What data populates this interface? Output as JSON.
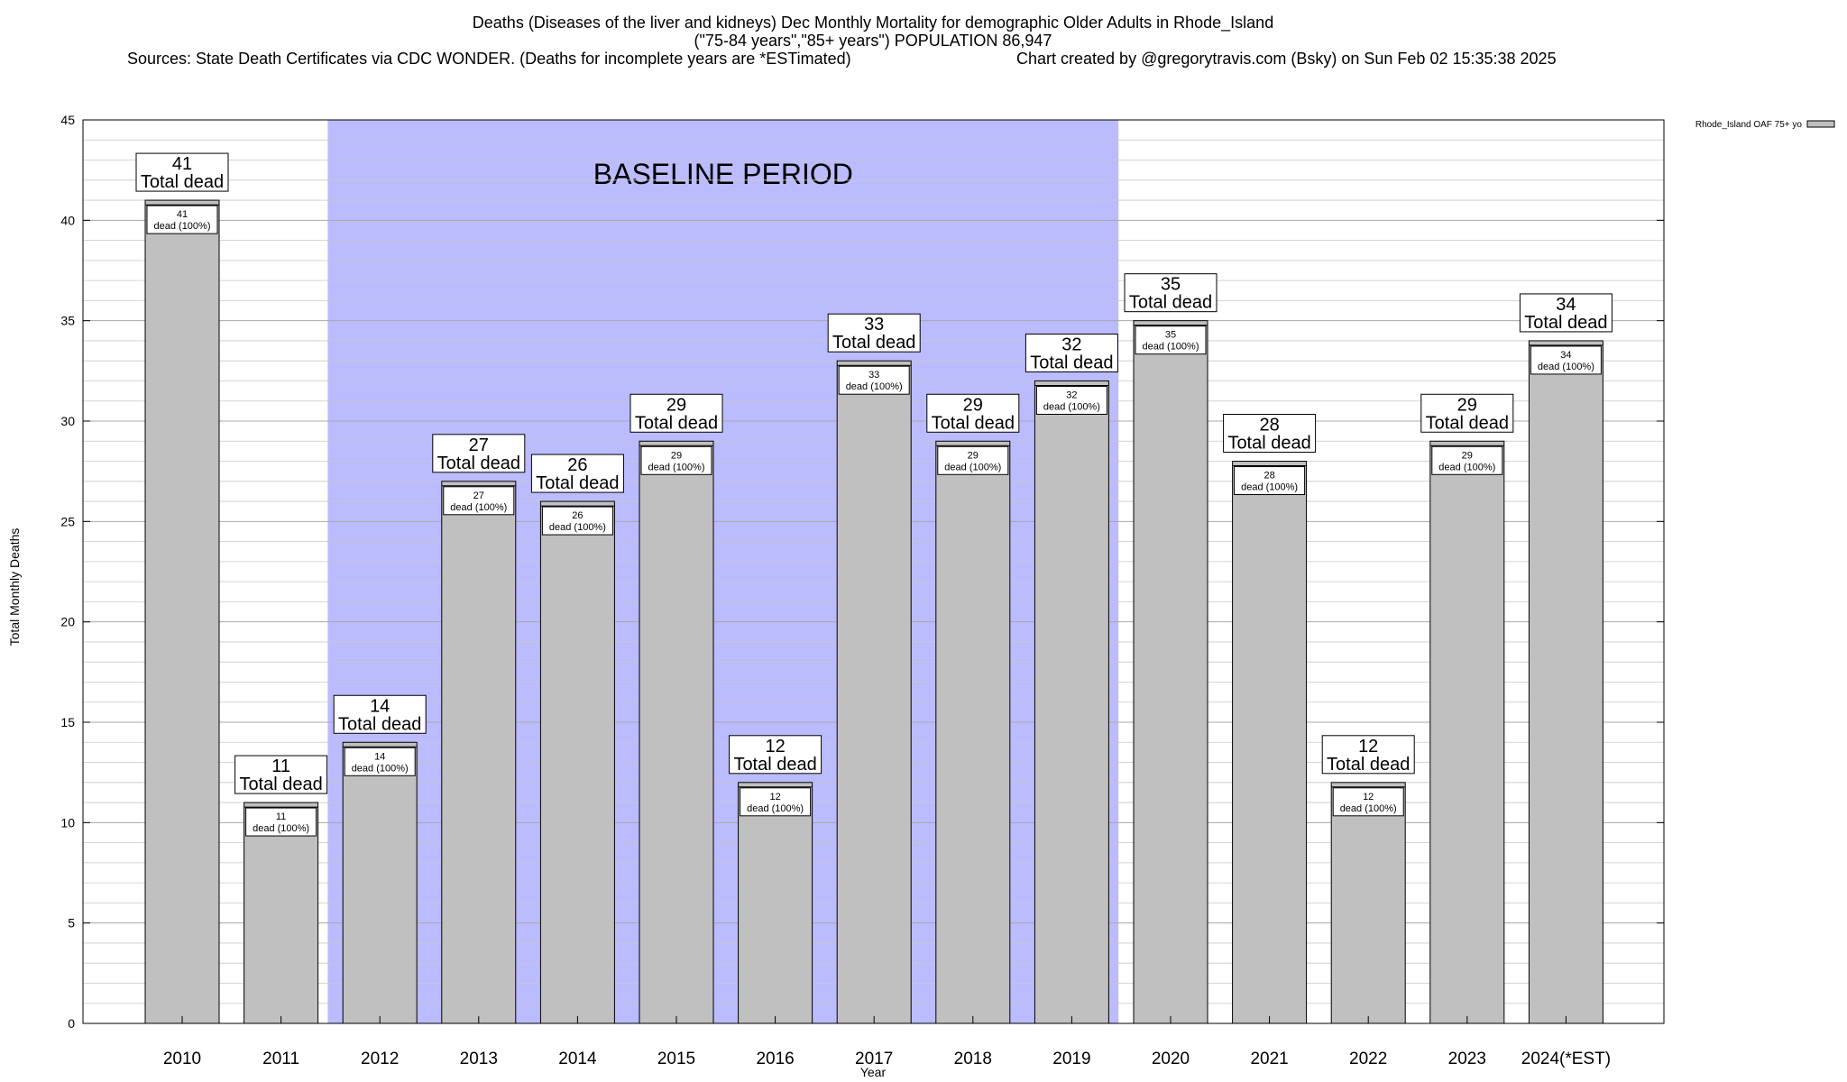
{
  "header": {
    "title_line1": "Deaths (Diseases of the liver and kidneys) Dec Monthly Mortality for demographic Older Adults in Rhode_Island",
    "title_line2": "(\"75-84 years\",\"85+ years\") POPULATION 86,947",
    "sources": "Sources: State Death Certificates via CDC WONDER. (Deaths for incomplete years are *ESTimated)",
    "credit": "Chart created by @gregorytravis.com (Bsky) on Sun Feb 02 15:35:38 2025"
  },
  "chart_data": {
    "type": "bar",
    "xlabel": "Year",
    "ylabel": "Total Monthly Deaths",
    "ylim": [
      0,
      45
    ],
    "yticks": [
      0,
      5,
      10,
      15,
      20,
      25,
      30,
      35,
      40,
      45
    ],
    "minor_grid_step": 1,
    "grid": true,
    "categories": [
      "2010",
      "2011",
      "2012",
      "2013",
      "2014",
      "2015",
      "2016",
      "2017",
      "2018",
      "2019",
      "2020",
      "2021",
      "2022",
      "2023",
      "2024(*EST)"
    ],
    "series": [
      {
        "name": "Rhode_Island OAF 75+ yo",
        "values": [
          41,
          11,
          14,
          27,
          26,
          29,
          12,
          33,
          29,
          32,
          35,
          28,
          12,
          29,
          34
        ],
        "color": "#c0c0c0"
      }
    ],
    "total_label_suffix": "Total dead",
    "inner_label_suffix": "dead (100%)",
    "baseline": {
      "label": "BASELINE PERIOD",
      "start_category": "2012",
      "end_category": "2019",
      "color": "#bbbbff"
    },
    "legend": {
      "position": "top-right",
      "label": "Rhode_Island OAF 75+ yo"
    }
  }
}
